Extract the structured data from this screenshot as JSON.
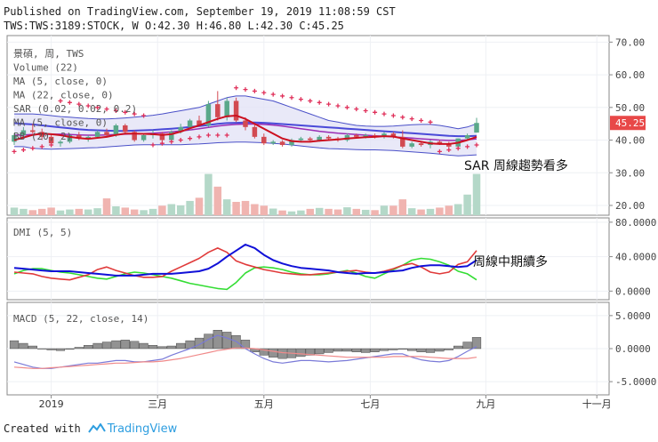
{
  "header": {
    "published": "Published on TradingView.com, September 19, 2019 11:08:59 CST",
    "symbol_line": "TWS:TWS:3189:STOCK, W O:42.30 H:46.80 L:42.30 C:45.25"
  },
  "footer": {
    "created_with": "Created with",
    "brand": "TradingView"
  },
  "colors": {
    "up": "#5aa88a",
    "down": "#d24a52",
    "sar": "#e0305a",
    "ma5": "#cc1020",
    "ma22": "#4a4ad8",
    "bb_mid": "#9a2db5",
    "bb_band": "#4a50c8",
    "bb_fill": "#e4e4f6",
    "dmi_plus": "#e03a3a",
    "dmi_minus": "#33dd33",
    "adx": "#1010d8",
    "macd_hist": "#6e6e6e",
    "macd_line": "#7a7ad8",
    "signal_line": "#f08a8a",
    "price_tag": "#e84848",
    "vol_up": "#b4d8c8",
    "vol_down": "#f0b4b0"
  },
  "chart_data": {
    "type": "candlestick",
    "x_labels": [
      "2019",
      "三月",
      "五月",
      "七月",
      "九月",
      "十一月"
    ],
    "price_panel": {
      "legend": [
        "景碩, 周, TWS",
        "Volume (22)",
        "MA (5, close, 0)",
        "MA (22, close, 0)",
        "SAR (0.02, 0.02, 0.2)",
        "MA (5, close, 0)",
        "BB (20, 2)"
      ],
      "ylim": [
        17,
        72
      ],
      "y_ticks": [
        "70.00",
        "60.00",
        "50.00",
        "40.00",
        "30.00",
        "20.00"
      ],
      "last_price": "45.25",
      "candles": [
        {
          "o": 39.5,
          "h": 42.0,
          "l": 38.5,
          "c": 41.5,
          "v": 2.4
        },
        {
          "o": 41.5,
          "h": 44.0,
          "l": 40.5,
          "c": 43.0,
          "v": 2.0
        },
        {
          "o": 43.0,
          "h": 45.0,
          "l": 42.0,
          "c": 42.5,
          "v": 1.6
        },
        {
          "o": 42.5,
          "h": 43.5,
          "l": 40.0,
          "c": 41.0,
          "v": 2.0
        },
        {
          "o": 41.0,
          "h": 42.0,
          "l": 38.5,
          "c": 39.0,
          "v": 2.4
        },
        {
          "o": 39.0,
          "h": 40.0,
          "l": 38.0,
          "c": 39.5,
          "v": 1.5
        },
        {
          "o": 39.5,
          "h": 42.0,
          "l": 39.0,
          "c": 41.5,
          "v": 1.8
        },
        {
          "o": 41.5,
          "h": 42.5,
          "l": 40.0,
          "c": 40.5,
          "v": 2.0
        },
        {
          "o": 40.5,
          "h": 41.5,
          "l": 39.5,
          "c": 41.0,
          "v": 1.8
        },
        {
          "o": 41.0,
          "h": 43.0,
          "l": 40.5,
          "c": 42.5,
          "v": 2.2
        },
        {
          "o": 42.5,
          "h": 43.5,
          "l": 41.0,
          "c": 41.5,
          "v": 5.3
        },
        {
          "o": 41.5,
          "h": 45.0,
          "l": 41.0,
          "c": 44.5,
          "v": 2.8
        },
        {
          "o": 44.5,
          "h": 45.0,
          "l": 42.0,
          "c": 42.5,
          "v": 2.4
        },
        {
          "o": 42.5,
          "h": 43.0,
          "l": 39.5,
          "c": 40.0,
          "v": 1.8
        },
        {
          "o": 40.0,
          "h": 42.0,
          "l": 39.5,
          "c": 41.5,
          "v": 1.6
        },
        {
          "o": 41.5,
          "h": 43.0,
          "l": 40.5,
          "c": 42.0,
          "v": 2.0
        },
        {
          "o": 42.0,
          "h": 42.5,
          "l": 39.0,
          "c": 40.0,
          "v": 3.0
        },
        {
          "o": 40.0,
          "h": 43.0,
          "l": 39.5,
          "c": 42.5,
          "v": 3.5
        },
        {
          "o": 42.5,
          "h": 45.0,
          "l": 42.0,
          "c": 44.0,
          "v": 3.1
        },
        {
          "o": 44.0,
          "h": 46.5,
          "l": 43.0,
          "c": 46.0,
          "v": 4.5
        },
        {
          "o": 46.0,
          "h": 47.5,
          "l": 44.5,
          "c": 44.5,
          "v": 5.5
        },
        {
          "o": 44.5,
          "h": 52.0,
          "l": 44.0,
          "c": 51.0,
          "v": 13.0
        },
        {
          "o": 51.0,
          "h": 55.0,
          "l": 46.0,
          "c": 47.0,
          "v": 9.0
        },
        {
          "o": 47.0,
          "h": 53.0,
          "l": 46.0,
          "c": 52.0,
          "v": 5.0
        },
        {
          "o": 52.0,
          "h": 53.0,
          "l": 45.5,
          "c": 46.0,
          "v": 4.2
        },
        {
          "o": 46.0,
          "h": 47.0,
          "l": 43.0,
          "c": 44.0,
          "v": 4.5
        },
        {
          "o": 44.0,
          "h": 45.0,
          "l": 40.5,
          "c": 41.0,
          "v": 3.5
        },
        {
          "o": 41.0,
          "h": 42.0,
          "l": 38.5,
          "c": 39.0,
          "v": 3.0
        },
        {
          "o": 39.0,
          "h": 40.0,
          "l": 38.5,
          "c": 39.5,
          "v": 2.1
        },
        {
          "o": 39.5,
          "h": 40.0,
          "l": 38.0,
          "c": 38.5,
          "v": 1.5
        },
        {
          "o": 38.5,
          "h": 40.5,
          "l": 38.0,
          "c": 40.0,
          "v": 1.2
        },
        {
          "o": 40.0,
          "h": 41.0,
          "l": 39.5,
          "c": 40.5,
          "v": 1.5
        },
        {
          "o": 40.5,
          "h": 41.0,
          "l": 39.5,
          "c": 40.0,
          "v": 2.0
        },
        {
          "o": 40.0,
          "h": 41.5,
          "l": 39.5,
          "c": 41.0,
          "v": 2.3
        },
        {
          "o": 41.0,
          "h": 41.5,
          "l": 40.0,
          "c": 40.5,
          "v": 2.0
        },
        {
          "o": 40.5,
          "h": 41.0,
          "l": 39.5,
          "c": 40.0,
          "v": 1.8
        },
        {
          "o": 40.0,
          "h": 42.0,
          "l": 39.5,
          "c": 41.5,
          "v": 2.5
        },
        {
          "o": 41.5,
          "h": 42.0,
          "l": 40.5,
          "c": 41.0,
          "v": 2.0
        },
        {
          "o": 41.0,
          "h": 42.0,
          "l": 40.5,
          "c": 41.5,
          "v": 1.7
        },
        {
          "o": 41.5,
          "h": 42.0,
          "l": 40.5,
          "c": 41.0,
          "v": 1.6
        },
        {
          "o": 41.0,
          "h": 42.5,
          "l": 40.5,
          "c": 42.0,
          "v": 3.0
        },
        {
          "o": 42.0,
          "h": 42.5,
          "l": 40.5,
          "c": 41.0,
          "v": 3.0
        },
        {
          "o": 41.0,
          "h": 43.0,
          "l": 37.5,
          "c": 38.0,
          "v": 5.0
        },
        {
          "o": 38.0,
          "h": 39.5,
          "l": 37.5,
          "c": 39.0,
          "v": 2.2
        },
        {
          "o": 39.0,
          "h": 39.5,
          "l": 38.0,
          "c": 38.5,
          "v": 1.8
        },
        {
          "o": 38.5,
          "h": 40.0,
          "l": 37.5,
          "c": 39.5,
          "v": 2.0
        },
        {
          "o": 39.5,
          "h": 40.0,
          "l": 38.5,
          "c": 39.0,
          "v": 2.4
        },
        {
          "o": 39.0,
          "h": 39.5,
          "l": 37.5,
          "c": 38.0,
          "v": 3.0
        },
        {
          "o": 38.0,
          "h": 40.5,
          "l": 37.5,
          "c": 40.5,
          "v": 3.5
        },
        {
          "o": 40.5,
          "h": 42.0,
          "l": 40.0,
          "c": 41.5,
          "v": 6.5
        },
        {
          "o": 42.3,
          "h": 46.8,
          "l": 42.3,
          "c": 45.25,
          "v": 13.0
        }
      ],
      "sar": [
        36.5,
        37.0,
        37.5,
        38.0,
        38.5,
        52.0,
        51.5,
        51.0,
        50.5,
        50.0,
        49.5,
        49.0,
        48.5,
        48.0,
        47.5,
        38.5,
        39.0,
        39.5,
        40.0,
        40.5,
        41.0,
        41.5,
        41.5,
        41.5,
        56.0,
        55.5,
        55.0,
        54.5,
        54.0,
        53.5,
        53.0,
        52.5,
        52.0,
        51.5,
        51.0,
        50.5,
        50.0,
        49.5,
        49.0,
        48.5,
        48.0,
        47.5,
        47.0,
        46.5,
        46.0,
        45.5,
        36.5,
        37.0,
        37.5,
        38.0,
        38.5
      ],
      "ma5": [
        40.0,
        40.8,
        41.6,
        42.0,
        41.8,
        41.5,
        41.0,
        40.6,
        40.4,
        40.7,
        41.0,
        41.6,
        42.0,
        42.0,
        41.9,
        41.8,
        41.6,
        41.8,
        42.6,
        43.6,
        44.5,
        45.5,
        46.5,
        47.3,
        47.5,
        46.5,
        45.0,
        43.5,
        42.0,
        40.5,
        39.7,
        39.5,
        39.5,
        39.8,
        40.0,
        40.2,
        40.5,
        40.7,
        40.9,
        41.0,
        41.2,
        41.1,
        40.5,
        40.0,
        39.5,
        39.0,
        38.8,
        38.8,
        39.2,
        40.0,
        41.0
      ],
      "ma22": [
        45.2,
        45.0,
        44.8,
        44.5,
        44.2,
        43.9,
        43.6,
        43.3,
        43.1,
        43.0,
        42.9,
        42.8,
        42.8,
        42.9,
        43.0,
        43.1,
        43.3,
        43.5,
        43.7,
        44.0,
        44.3,
        44.6,
        45.0,
        45.2,
        45.3,
        45.4,
        45.4,
        45.3,
        45.1,
        44.9,
        44.7,
        44.5,
        44.3,
        44.1,
        43.9,
        43.7,
        43.5,
        43.3,
        43.1,
        42.9,
        42.7,
        42.5,
        42.3,
        42.1,
        41.9,
        41.7,
        41.5,
        41.3,
        41.2,
        41.2,
        41.3
      ],
      "bb_mid": [
        41.5,
        41.6,
        41.7,
        41.8,
        41.8,
        41.8,
        41.7,
        41.6,
        41.5,
        41.5,
        41.6,
        41.7,
        41.8,
        41.9,
        42.0,
        42.1,
        42.3,
        42.5,
        42.8,
        43.1,
        43.5,
        43.9,
        44.3,
        44.6,
        44.8,
        44.9,
        44.9,
        44.8,
        44.6,
        44.3,
        43.9,
        43.5,
        43.1,
        42.7,
        42.4,
        42.1,
        41.9,
        41.7,
        41.5,
        41.3,
        41.2,
        41.0,
        40.8,
        40.6,
        40.4,
        40.2,
        40.0,
        39.9,
        39.9,
        40.1,
        40.4
      ],
      "bb_upper": [
        48.0,
        48.0,
        48.0,
        47.8,
        47.5,
        47.2,
        47.0,
        46.8,
        46.6,
        46.5,
        46.5,
        46.6,
        46.8,
        47.0,
        47.3,
        47.6,
        48.0,
        48.5,
        49.0,
        49.5,
        50.0,
        51.0,
        52.0,
        53.0,
        53.5,
        53.5,
        53.0,
        52.5,
        52.0,
        51.0,
        50.0,
        49.0,
        48.0,
        47.0,
        46.0,
        45.5,
        45.0,
        44.5,
        44.3,
        44.2,
        44.2,
        44.3,
        44.5,
        44.7,
        44.8,
        44.8,
        44.5,
        44.0,
        43.5,
        44.0,
        45.0
      ],
      "bb_lower": [
        38.0,
        38.0,
        37.5,
        37.3,
        37.2,
        37.3,
        37.4,
        37.5,
        37.6,
        37.7,
        37.9,
        38.1,
        38.3,
        38.5,
        38.6,
        38.6,
        38.6,
        38.6,
        38.6,
        38.7,
        38.8,
        39.0,
        39.2,
        39.3,
        39.4,
        39.4,
        39.3,
        39.2,
        39.0,
        38.8,
        38.5,
        38.2,
        37.9,
        37.6,
        37.4,
        37.3,
        37.2,
        37.1,
        37.0,
        37.0,
        36.9,
        36.8,
        36.6,
        36.4,
        36.2,
        36.0,
        35.7,
        35.4,
        35.2,
        35.3,
        35.5
      ]
    },
    "dmi_panel": {
      "legend": "DMI (5, 5)",
      "ylim": [
        -10,
        85
      ],
      "y_ticks": [
        "80.0000",
        "40.0000",
        "0.0000"
      ],
      "plus_di": [
        22,
        21,
        20,
        17,
        15,
        14,
        13,
        16,
        19,
        25,
        28,
        24,
        21,
        18,
        16,
        16,
        17,
        23,
        28,
        33,
        38,
        45,
        50,
        45,
        35,
        31,
        28,
        25,
        23,
        21,
        20,
        19,
        19,
        20,
        21,
        22,
        23,
        24,
        22,
        21,
        23,
        26,
        30,
        32,
        28,
        22,
        20,
        22,
        31,
        34,
        47
      ],
      "minus_di": [
        20,
        24,
        26,
        26,
        24,
        22,
        21,
        19,
        17,
        15,
        14,
        17,
        20,
        22,
        21,
        19,
        17,
        15,
        12,
        9,
        7,
        5,
        3,
        2,
        10,
        21,
        27,
        28,
        27,
        25,
        22,
        20,
        19,
        19,
        20,
        22,
        24,
        21,
        17,
        15,
        20,
        25,
        30,
        36,
        38,
        37,
        34,
        30,
        23,
        20,
        13
      ],
      "adx": [
        27,
        26,
        25,
        24,
        23,
        23,
        23,
        22,
        21,
        20,
        19,
        18,
        18,
        18,
        19,
        20,
        20,
        20,
        21,
        22,
        23,
        26,
        32,
        40,
        47,
        54,
        50,
        42,
        36,
        32,
        29,
        27,
        26,
        25,
        24,
        22,
        21,
        20,
        21,
        21,
        22,
        23,
        24,
        27,
        29,
        30,
        30,
        29,
        28,
        29,
        36
      ]
    },
    "macd_panel": {
      "legend": "MACD (5, 22, close, 14)",
      "ylim": [
        -7,
        7
      ],
      "y_ticks": [
        "5.0000",
        "0.0000",
        "-5.0000"
      ],
      "histogram": [
        1.2,
        0.8,
        0.4,
        0.0,
        -0.2,
        -0.3,
        -0.1,
        0.2,
        0.5,
        0.8,
        1.0,
        1.2,
        1.3,
        1.1,
        0.8,
        0.5,
        0.3,
        0.4,
        0.8,
        1.2,
        1.6,
        2.2,
        2.8,
        2.5,
        2.0,
        1.3,
        -0.5,
        -1.0,
        -1.3,
        -1.5,
        -1.4,
        -1.2,
        -1.0,
        -0.8,
        -0.6,
        -0.4,
        -0.4,
        -0.5,
        -0.6,
        -0.5,
        -0.3,
        -0.2,
        -0.1,
        -0.3,
        -0.5,
        -0.6,
        -0.4,
        -0.2,
        0.4,
        1.0,
        1.7
      ],
      "macd": [
        -2.0,
        -2.4,
        -2.8,
        -3.0,
        -3.0,
        -2.8,
        -2.6,
        -2.4,
        -2.2,
        -2.2,
        -2.0,
        -1.8,
        -1.8,
        -2.0,
        -2.0,
        -1.8,
        -1.6,
        -1.0,
        -0.5,
        0.0,
        0.6,
        1.4,
        2.0,
        1.6,
        1.1,
        0.0,
        -0.8,
        -1.5,
        -2.0,
        -2.2,
        -2.0,
        -1.8,
        -1.8,
        -1.9,
        -2.0,
        -1.9,
        -1.8,
        -1.6,
        -1.4,
        -1.2,
        -1.0,
        -0.8,
        -0.8,
        -1.3,
        -1.7,
        -1.9,
        -2.0,
        -1.8,
        -1.2,
        -0.4,
        0.3
      ],
      "signal": [
        -2.8,
        -2.9,
        -3.0,
        -3.0,
        -2.9,
        -2.8,
        -2.7,
        -2.6,
        -2.5,
        -2.4,
        -2.3,
        -2.2,
        -2.2,
        -2.1,
        -2.0,
        -2.0,
        -1.9,
        -1.7,
        -1.5,
        -1.2,
        -0.9,
        -0.6,
        -0.3,
        -0.1,
        0.1,
        0.1,
        0.0,
        -0.2,
        -0.4,
        -0.6,
        -0.7,
        -0.8,
        -0.9,
        -1.0,
        -1.1,
        -1.2,
        -1.3,
        -1.3,
        -1.3,
        -1.3,
        -1.3,
        -1.2,
        -1.2,
        -1.2,
        -1.2,
        -1.3,
        -1.4,
        -1.5,
        -1.5,
        -1.5,
        -1.3
      ]
    },
    "annotations": {
      "sar_note": "SAR 周線趨勢看多",
      "dmi_note": "周線中期續多"
    }
  }
}
